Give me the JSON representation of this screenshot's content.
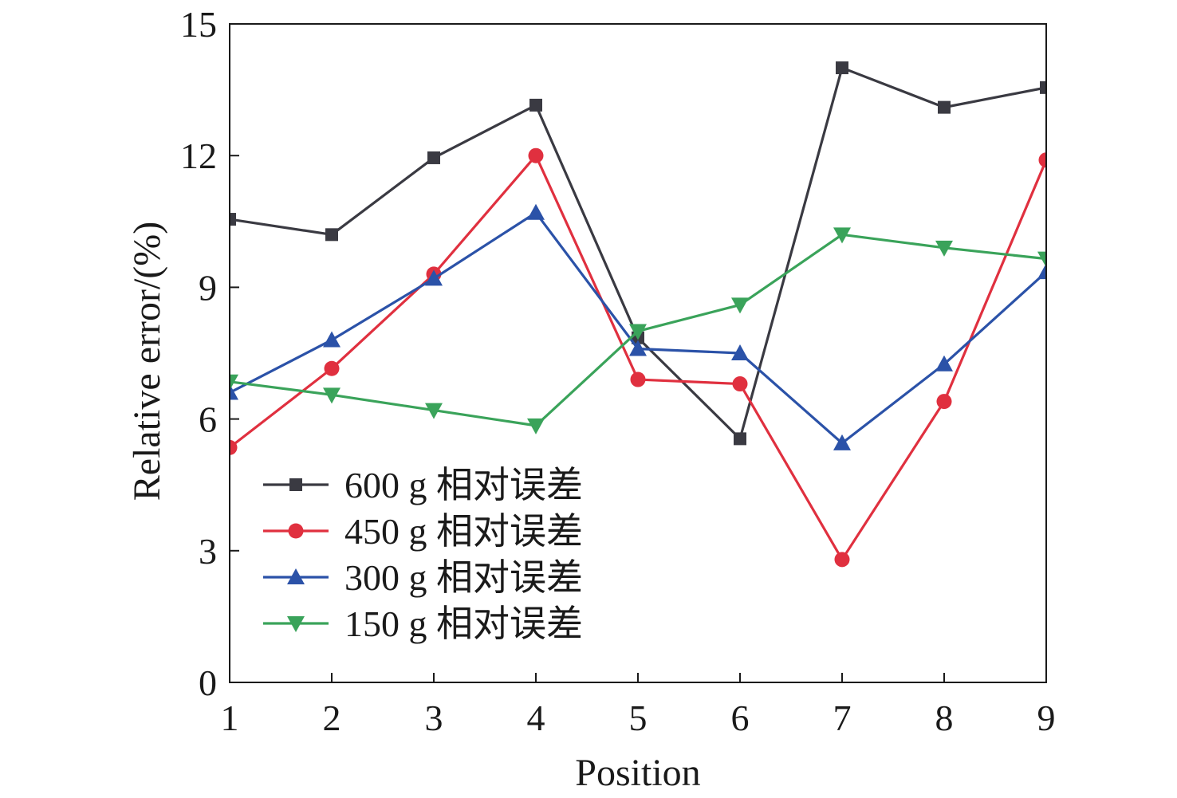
{
  "chart_data": {
    "type": "line",
    "xlabel": "Position",
    "ylabel": "Relative error/(%)",
    "x": [
      1,
      2,
      3,
      4,
      5,
      6,
      7,
      8,
      9
    ],
    "xlim": [
      1,
      9
    ],
    "ylim": [
      0,
      15
    ],
    "x_ticks": [
      "1",
      "2",
      "3",
      "4",
      "5",
      "6",
      "7",
      "8",
      "9"
    ],
    "y_ticks": [
      "0",
      "3",
      "6",
      "9",
      "12",
      "15"
    ],
    "grid": false,
    "legend_position": "lower-left",
    "series": [
      {
        "name": "600 g 相对误差",
        "marker": "square",
        "color": "#3a3a42",
        "values": [
          10.55,
          10.2,
          11.95,
          13.15,
          7.85,
          5.55,
          14.0,
          13.1,
          13.55
        ]
      },
      {
        "name": "450 g 相对误差",
        "marker": "circle",
        "color": "#e0303f",
        "values": [
          5.35,
          7.15,
          9.3,
          12.0,
          6.9,
          6.8,
          2.8,
          6.4,
          11.9
        ]
      },
      {
        "name": "300 g 相对误差",
        "marker": "triangle-up",
        "color": "#2b52a8",
        "values": [
          6.6,
          7.8,
          9.2,
          10.7,
          7.6,
          7.5,
          5.45,
          7.25,
          9.35
        ]
      },
      {
        "name": "150 g 相对误差",
        "marker": "triangle-down",
        "color": "#3aa35a",
        "values": [
          6.85,
          6.55,
          6.2,
          5.85,
          8.0,
          8.6,
          10.2,
          9.9,
          9.65
        ]
      }
    ]
  }
}
